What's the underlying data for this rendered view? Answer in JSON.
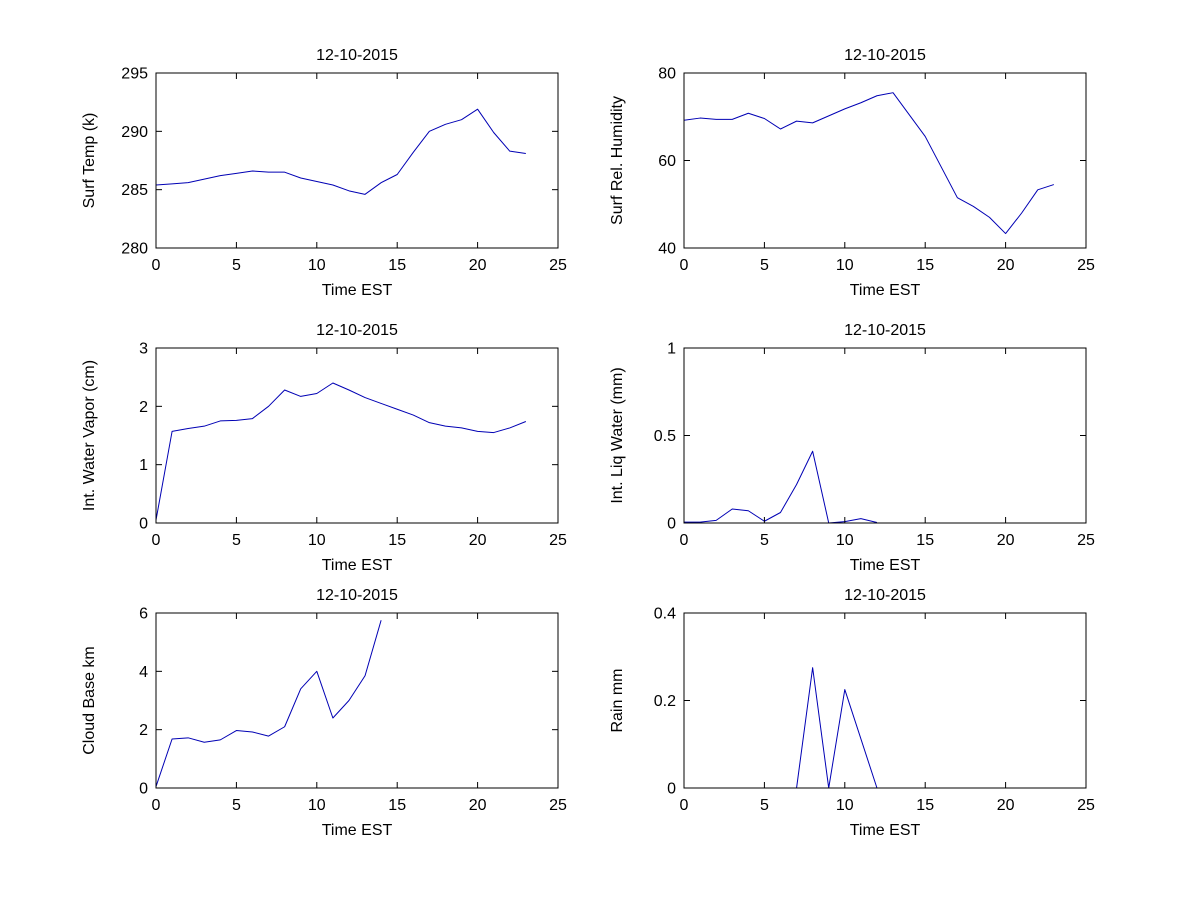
{
  "figure": {
    "background_color": "#ffffff",
    "line_color": "#0000b4",
    "axis_color": "#000000",
    "text_color": "#000000"
  },
  "chart_data": [
    {
      "type": "line",
      "title": "12-10-2015",
      "xlabel": "Time EST",
      "ylabel": "Surf Temp (k)",
      "xlim": [
        0,
        25
      ],
      "ylim": [
        280,
        295
      ],
      "xticks": [
        0,
        5,
        10,
        15,
        20,
        25
      ],
      "yticks": [
        280,
        285,
        290,
        295
      ],
      "grid": false,
      "legend": null,
      "x": [
        0,
        1,
        2,
        3,
        4,
        5,
        6,
        7,
        8,
        9,
        10,
        11,
        12,
        13,
        14,
        15,
        16,
        17,
        18,
        19,
        20,
        21,
        22,
        23
      ],
      "y": [
        285.4,
        285.5,
        285.6,
        285.9,
        286.2,
        286.4,
        286.6,
        286.5,
        286.5,
        286.0,
        285.7,
        285.4,
        284.9,
        284.6,
        285.6,
        286.3,
        288.2,
        290.0,
        290.6,
        291.0,
        291.9,
        289.9,
        288.3,
        288.1
      ]
    },
    {
      "type": "line",
      "title": "12-10-2015",
      "xlabel": "Time EST",
      "ylabel": "Surf Rel. Humidity",
      "xlim": [
        0,
        25
      ],
      "ylim": [
        40,
        80
      ],
      "xticks": [
        0,
        5,
        10,
        15,
        20,
        25
      ],
      "yticks": [
        40,
        60,
        80
      ],
      "grid": false,
      "legend": null,
      "x": [
        0,
        1,
        2,
        3,
        4,
        5,
        6,
        7,
        8,
        9,
        10,
        11,
        12,
        13,
        14,
        15,
        16,
        17,
        18,
        19,
        20,
        21,
        22,
        23
      ],
      "y": [
        69.2,
        69.7,
        69.4,
        69.4,
        70.8,
        69.6,
        67.2,
        69.0,
        68.6,
        70.2,
        71.8,
        73.2,
        74.8,
        75.5,
        70.5,
        65.5,
        58.5,
        51.5,
        49.5,
        47.0,
        43.3,
        48.0,
        53.3,
        54.5
      ]
    },
    {
      "type": "line",
      "title": "12-10-2015",
      "xlabel": "Time EST",
      "ylabel": "Int. Water Vapor (cm)",
      "xlim": [
        0,
        25
      ],
      "ylim": [
        0,
        3
      ],
      "xticks": [
        0,
        5,
        10,
        15,
        20,
        25
      ],
      "yticks": [
        0,
        1,
        2,
        3
      ],
      "grid": false,
      "legend": null,
      "x": [
        0,
        1,
        2,
        3,
        4,
        5,
        6,
        7,
        8,
        9,
        10,
        11,
        12,
        13,
        14,
        15,
        16,
        17,
        18,
        19,
        20,
        21,
        22,
        23
      ],
      "y": [
        0.05,
        1.57,
        1.62,
        1.66,
        1.75,
        1.76,
        1.79,
        2.0,
        2.28,
        2.17,
        2.22,
        2.4,
        2.28,
        2.15,
        2.05,
        1.95,
        1.85,
        1.72,
        1.66,
        1.63,
        1.57,
        1.55,
        1.63,
        1.74
      ]
    },
    {
      "type": "line",
      "title": "12-10-2015",
      "xlabel": "Time EST",
      "ylabel": "Int. Liq Water (mm)",
      "xlim": [
        0,
        25
      ],
      "ylim": [
        0,
        1
      ],
      "xticks": [
        0,
        5,
        10,
        15,
        20,
        25
      ],
      "yticks": [
        0,
        0.5,
        1
      ],
      "grid": false,
      "legend": null,
      "x": [
        0,
        1,
        2,
        3,
        4,
        5,
        6,
        7,
        8,
        9,
        10,
        11,
        12
      ],
      "y": [
        0.005,
        0.005,
        0.015,
        0.08,
        0.07,
        0.01,
        0.06,
        0.22,
        0.41,
        0.0,
        0.008,
        0.025,
        0.003
      ]
    },
    {
      "type": "line",
      "title": "12-10-2015",
      "xlabel": "Time EST",
      "ylabel": "Cloud Base km",
      "xlim": [
        0,
        25
      ],
      "ylim": [
        0,
        6
      ],
      "xticks": [
        0,
        5,
        10,
        15,
        20,
        25
      ],
      "yticks": [
        0,
        2,
        4,
        6
      ],
      "grid": false,
      "legend": null,
      "x": [
        0,
        1,
        2,
        3,
        4,
        5,
        6,
        7,
        8,
        9,
        10,
        11,
        12,
        13,
        14
      ],
      "y": [
        0.05,
        1.68,
        1.72,
        1.57,
        1.65,
        1.97,
        1.92,
        1.78,
        2.1,
        3.4,
        4.0,
        2.4,
        3.0,
        3.85,
        5.75
      ]
    },
    {
      "type": "line",
      "title": "12-10-2015",
      "xlabel": "Time EST",
      "ylabel": "Rain mm",
      "xlim": [
        0,
        25
      ],
      "ylim": [
        0,
        0.4
      ],
      "xticks": [
        0,
        5,
        10,
        15,
        20,
        25
      ],
      "yticks": [
        0,
        0.2,
        0.4
      ],
      "grid": false,
      "legend": null,
      "x": [
        7,
        8,
        9,
        10,
        12
      ],
      "y": [
        0.0,
        0.275,
        0.0,
        0.225,
        0.0
      ]
    }
  ]
}
